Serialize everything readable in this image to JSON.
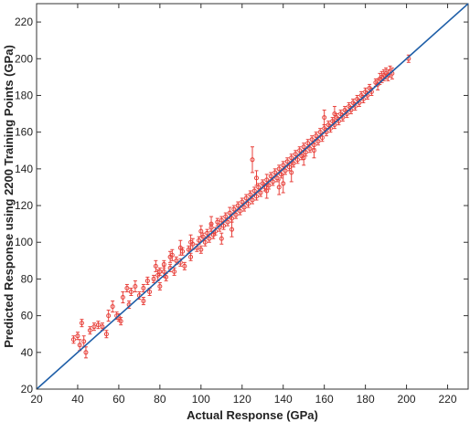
{
  "chart_data": {
    "type": "scatter",
    "title": "",
    "xlabel": "Actual Response (GPa)",
    "ylabel": "Predicted Response using 2200 Training Points (GPa)",
    "xlim": [
      20,
      230
    ],
    "ylim": [
      20,
      230
    ],
    "xticks": [
      20,
      40,
      60,
      80,
      100,
      120,
      140,
      160,
      180,
      200,
      220
    ],
    "yticks": [
      20,
      40,
      60,
      80,
      100,
      120,
      140,
      160,
      180,
      200,
      220
    ],
    "grid": false,
    "legend": "none",
    "colors": {
      "points": "#e8423c",
      "fit_line": "#1f5fa8",
      "axis": "#333333"
    },
    "reference_line": {
      "x": [
        20,
        230
      ],
      "y": [
        20,
        230
      ]
    },
    "series": [
      {
        "points": [
          [
            38,
            47,
            2
          ],
          [
            40,
            49,
            2
          ],
          [
            41,
            44,
            3
          ],
          [
            42,
            56,
            2
          ],
          [
            43,
            46,
            3
          ],
          [
            44,
            40,
            3
          ],
          [
            46,
            52,
            2
          ],
          [
            48,
            54,
            2
          ],
          [
            50,
            55,
            2
          ],
          [
            52,
            54,
            2
          ],
          [
            54,
            50,
            2
          ],
          [
            55,
            60,
            3
          ],
          [
            57,
            65,
            3
          ],
          [
            59,
            60,
            2
          ],
          [
            60,
            59,
            2
          ],
          [
            61,
            57,
            2
          ],
          [
            62,
            70,
            3
          ],
          [
            64,
            75,
            2
          ],
          [
            65,
            66,
            2
          ],
          [
            66,
            73,
            2
          ],
          [
            68,
            76,
            3
          ],
          [
            70,
            71,
            2
          ],
          [
            72,
            75,
            2
          ],
          [
            74,
            79,
            2
          ],
          [
            75,
            73,
            2
          ],
          [
            77,
            80,
            2
          ],
          [
            78,
            87,
            3
          ],
          [
            80,
            84,
            2
          ],
          [
            80,
            76,
            2
          ],
          [
            82,
            88,
            2
          ],
          [
            83,
            81,
            2
          ],
          [
            85,
            86,
            2
          ],
          [
            86,
            93,
            3
          ],
          [
            87,
            84,
            2
          ],
          [
            88,
            90,
            2
          ],
          [
            90,
            89,
            2
          ],
          [
            91,
            95,
            2
          ],
          [
            92,
            87,
            2
          ],
          [
            94,
            96,
            2
          ],
          [
            95,
            92,
            2
          ],
          [
            96,
            99,
            3
          ],
          [
            98,
            97,
            2
          ],
          [
            99,
            101,
            2
          ],
          [
            100,
            96,
            2
          ],
          [
            101,
            103,
            2
          ],
          [
            102,
            100,
            2
          ],
          [
            103,
            105,
            2
          ],
          [
            104,
            102,
            2
          ],
          [
            105,
            108,
            2
          ],
          [
            106,
            104,
            2
          ],
          [
            107,
            106,
            2
          ],
          [
            108,
            111,
            2
          ],
          [
            109,
            108,
            2
          ],
          [
            110,
            112,
            2
          ],
          [
            111,
            109,
            2
          ],
          [
            112,
            114,
            2
          ],
          [
            113,
            111,
            2
          ],
          [
            114,
            116,
            3
          ],
          [
            115,
            113,
            2
          ],
          [
            116,
            118,
            2
          ],
          [
            117,
            115,
            2
          ],
          [
            118,
            120,
            2
          ],
          [
            119,
            117,
            2
          ],
          [
            120,
            122,
            2
          ],
          [
            121,
            119,
            2
          ],
          [
            122,
            124,
            2
          ],
          [
            123,
            121,
            2
          ],
          [
            124,
            126,
            2
          ],
          [
            125,
            123,
            2
          ],
          [
            126,
            128,
            2
          ],
          [
            127,
            125,
            2
          ],
          [
            128,
            130,
            2
          ],
          [
            129,
            127,
            2
          ],
          [
            130,
            132,
            2
          ],
          [
            131,
            130,
            2
          ],
          [
            132,
            134,
            3
          ],
          [
            133,
            131,
            2
          ],
          [
            134,
            136,
            2
          ],
          [
            135,
            133,
            2
          ],
          [
            136,
            138,
            2
          ],
          [
            137,
            135,
            2
          ],
          [
            138,
            140,
            2
          ],
          [
            139,
            137,
            2
          ],
          [
            140,
            142,
            2
          ],
          [
            141,
            139,
            2
          ],
          [
            142,
            144,
            2
          ],
          [
            143,
            141,
            2
          ],
          [
            144,
            146,
            2
          ],
          [
            145,
            143,
            2
          ],
          [
            146,
            148,
            2
          ],
          [
            147,
            145,
            2
          ],
          [
            148,
            150,
            2
          ],
          [
            149,
            147,
            2
          ],
          [
            150,
            152,
            2
          ],
          [
            151,
            149,
            2
          ],
          [
            152,
            154,
            2
          ],
          [
            153,
            151,
            2
          ],
          [
            154,
            156,
            2
          ],
          [
            155,
            153,
            2
          ],
          [
            156,
            158,
            2
          ],
          [
            157,
            155,
            2
          ],
          [
            158,
            160,
            2
          ],
          [
            159,
            157,
            2
          ],
          [
            160,
            162,
            2
          ],
          [
            161,
            160,
            2
          ],
          [
            162,
            164,
            2
          ],
          [
            163,
            162,
            2
          ],
          [
            164,
            166,
            2
          ],
          [
            165,
            164,
            2
          ],
          [
            166,
            168,
            2
          ],
          [
            167,
            166,
            2
          ],
          [
            168,
            170,
            2
          ],
          [
            169,
            168,
            2
          ],
          [
            170,
            172,
            2
          ],
          [
            171,
            170,
            2
          ],
          [
            172,
            174,
            2
          ],
          [
            173,
            172,
            2
          ],
          [
            174,
            176,
            2
          ],
          [
            175,
            174,
            2
          ],
          [
            176,
            178,
            2
          ],
          [
            177,
            176,
            2
          ],
          [
            178,
            180,
            2
          ],
          [
            179,
            178,
            2
          ],
          [
            180,
            182,
            2
          ],
          [
            181,
            180,
            2
          ],
          [
            182,
            184,
            2
          ],
          [
            183,
            182,
            2
          ],
          [
            185,
            187,
            2
          ],
          [
            186,
            186,
            3
          ],
          [
            187,
            189,
            3
          ],
          [
            188,
            190,
            3
          ],
          [
            189,
            191,
            3
          ],
          [
            190,
            192,
            3
          ],
          [
            191,
            191,
            3
          ],
          [
            192,
            193,
            3
          ],
          [
            193,
            192,
            3
          ],
          [
            201,
            200,
            2
          ],
          [
            125,
            145,
            7
          ],
          [
            127,
            135,
            4
          ],
          [
            132,
            128,
            4
          ],
          [
            138,
            130,
            4
          ],
          [
            140,
            132,
            5
          ],
          [
            144,
            138,
            5
          ],
          [
            150,
            146,
            4
          ],
          [
            155,
            150,
            4
          ],
          [
            160,
            168,
            4
          ],
          [
            165,
            170,
            4
          ],
          [
            115,
            107,
            4
          ],
          [
            110,
            102,
            3
          ],
          [
            105,
            110,
            4
          ],
          [
            100,
            106,
            3
          ],
          [
            95,
            100,
            4
          ],
          [
            90,
            97,
            4
          ],
          [
            85,
            92,
            3
          ],
          [
            82,
            84,
            3
          ],
          [
            79,
            82,
            3
          ],
          [
            72,
            68,
            2
          ]
        ]
      }
    ]
  }
}
